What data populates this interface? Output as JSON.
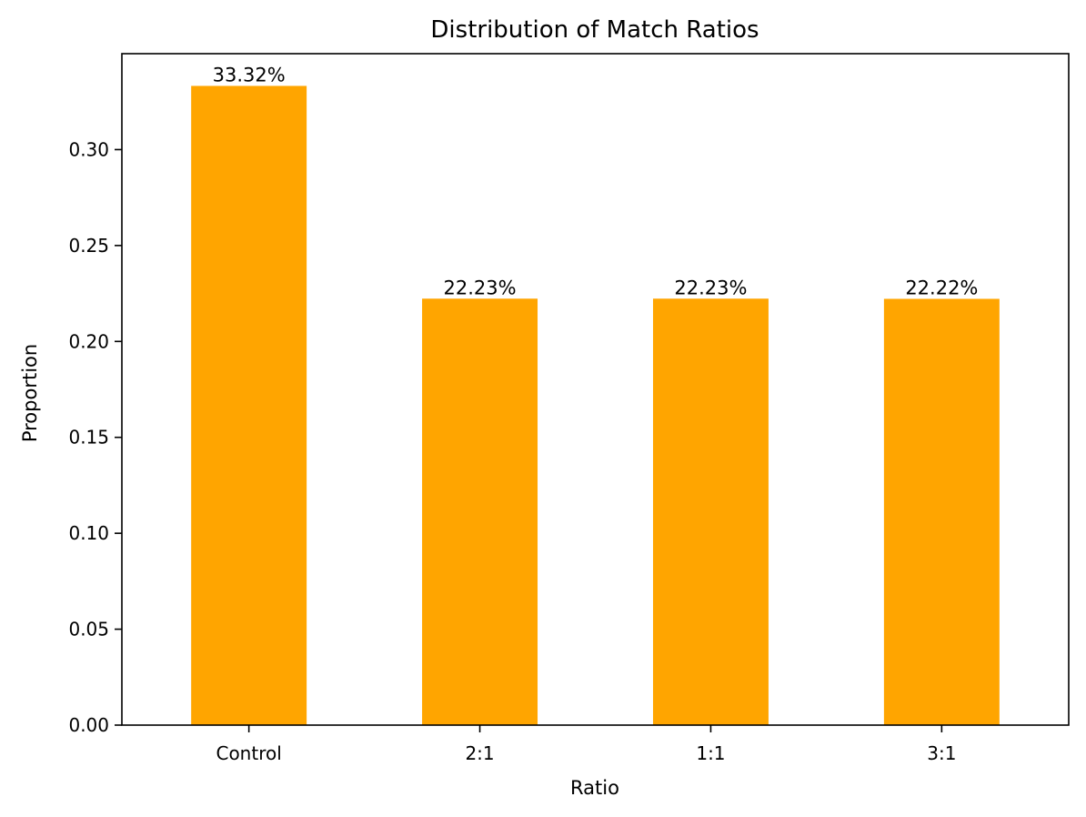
{
  "chart_data": {
    "type": "bar",
    "title": "Distribution of Match Ratios",
    "xlabel": "Ratio",
    "ylabel": "Proportion",
    "categories": [
      "Control",
      "2:1",
      "1:1",
      "3:1"
    ],
    "values": [
      0.3332,
      0.2223,
      0.2223,
      0.2222
    ],
    "data_labels": [
      "33.32%",
      "22.23%",
      "22.23%",
      "22.22%"
    ],
    "ylim": [
      0,
      0.35
    ],
    "yticks": [
      0.0,
      0.05,
      0.1,
      0.15,
      0.2,
      0.25,
      0.3
    ],
    "ytick_labels": [
      "0.00",
      "0.05",
      "0.10",
      "0.15",
      "0.20",
      "0.25",
      "0.30"
    ],
    "bar_color": "#FFA500",
    "grid": false,
    "legend": "none"
  }
}
